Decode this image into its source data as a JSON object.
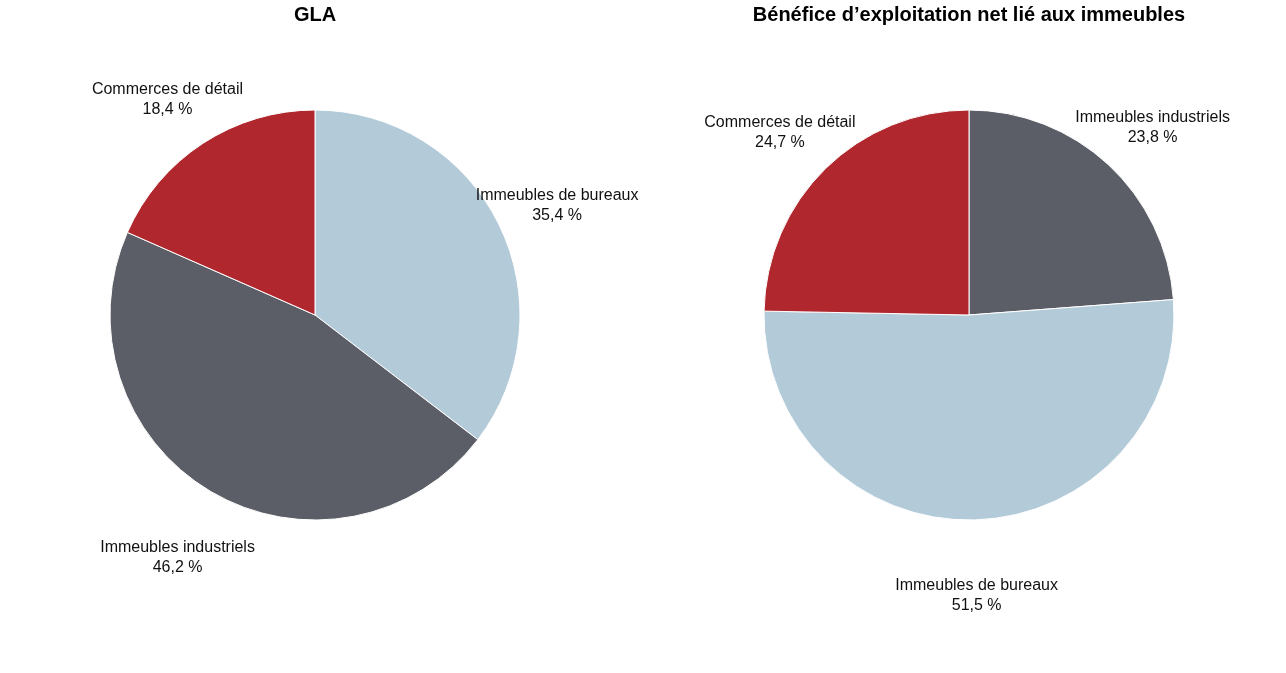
{
  "chart_data": [
    {
      "type": "pie",
      "title": "GLA",
      "categories": [
        "Immeubles de bureaux",
        "Immeubles industriels",
        "Commerces de détail"
      ],
      "values": [
        35.4,
        46.2,
        18.4
      ],
      "colors": [
        "#b3cad8",
        "#5b5e67",
        "#b0282e"
      ],
      "value_labels": [
        "35,4 %",
        "46,2 %",
        "18,4 %"
      ]
    },
    {
      "type": "pie",
      "title": "Bénéfice d’exploitation net lié aux immeubles",
      "categories": [
        "Immeubles industriels",
        "Immeubles de bureaux",
        "Commerces de détail"
      ],
      "values": [
        23.8,
        51.5,
        24.7
      ],
      "colors": [
        "#5b5e67",
        "#b3cad8",
        "#b0282e"
      ],
      "value_labels": [
        "23,8 %",
        "51,5 %",
        "24,7 %"
      ]
    }
  ]
}
